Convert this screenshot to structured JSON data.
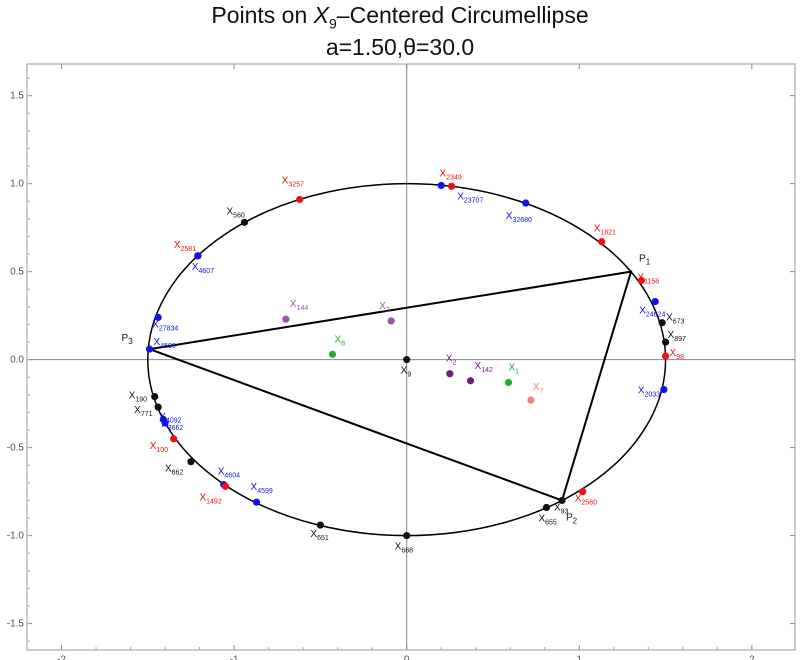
{
  "title": {
    "line1_pre": "Points on ",
    "line1_var": "X",
    "line1_sub": "9",
    "line1_post": "–Centered Circumellipse",
    "line2": "a=1.50,θ=30.0"
  },
  "chart_data": {
    "type": "scatter",
    "title": "Points on X9–Centered Circumellipse a=1.50,θ=30.0",
    "xlabel": "",
    "ylabel": "",
    "xlim": [
      -2.2,
      2.25
    ],
    "ylim": [
      -1.65,
      1.68
    ],
    "grid": false,
    "x_ticks": [
      -2,
      -1,
      0,
      1,
      2
    ],
    "x_tick_labels": [
      "-2",
      "-1",
      "0",
      "1",
      "2"
    ],
    "y_ticks": [
      -1.5,
      -1.0,
      -0.5,
      0.0,
      0.5,
      1.0,
      1.5
    ],
    "y_tick_labels": [
      "-1.5",
      "-1.0",
      "-0.5",
      "0.0",
      "0.5",
      "1.0",
      "1.5"
    ],
    "ellipse": {
      "center": [
        0,
        0
      ],
      "semi_x": 1.5,
      "semi_y": 1.0
    },
    "triangle": [
      {
        "name": "P",
        "sub": "1",
        "x": 1.3,
        "y": 0.5
      },
      {
        "name": "P",
        "sub": "2",
        "x": 0.9,
        "y": -0.8
      },
      {
        "name": "P",
        "sub": "3",
        "x": -1.49,
        "y": 0.06
      }
    ],
    "points": [
      {
        "base": "X",
        "sub": "2349",
        "x": 0.26,
        "y": 0.985,
        "color": "#ee1111"
      },
      {
        "base": "X",
        "sub": "23707",
        "x": 0.2,
        "y": 0.99,
        "color": "#1111ee"
      },
      {
        "base": "X",
        "sub": "3257",
        "x": -0.62,
        "y": 0.91,
        "color": "#ee1111"
      },
      {
        "base": "X",
        "sub": "560",
        "x": -0.94,
        "y": 0.78,
        "color": "#111111"
      },
      {
        "base": "X",
        "sub": "32680",
        "x": 0.69,
        "y": 0.89,
        "color": "#1111ee"
      },
      {
        "base": "X",
        "sub": "1821",
        "x": 1.13,
        "y": 0.67,
        "color": "#ee1111"
      },
      {
        "base": "X",
        "sub": "2581",
        "x": -1.21,
        "y": 0.59,
        "color": "#ee1111"
      },
      {
        "base": "X",
        "sub": "4607",
        "x": -1.21,
        "y": 0.59,
        "color": "#1111ee"
      },
      {
        "base": "X",
        "sub": "1156",
        "x": 1.36,
        "y": 0.45,
        "color": "#ee1111"
      },
      {
        "base": "X",
        "sub": "24624",
        "x": 1.44,
        "y": 0.33,
        "color": "#1111ee"
      },
      {
        "base": "X",
        "sub": "673",
        "x": 1.48,
        "y": 0.21,
        "color": "#111111"
      },
      {
        "base": "X",
        "sub": "897",
        "x": 1.5,
        "y": 0.1,
        "color": "#111111"
      },
      {
        "base": "X",
        "sub": "98",
        "x": 1.5,
        "y": 0.02,
        "color": "#ee1111"
      },
      {
        "base": "X",
        "sub": "2033",
        "x": 1.49,
        "y": -0.17,
        "color": "#1111ee"
      },
      {
        "base": "X",
        "sub": "27834",
        "x": -1.44,
        "y": 0.24,
        "color": "#1111ee"
      },
      {
        "base": "X",
        "sub": "4598",
        "x": -1.49,
        "y": 0.06,
        "color": "#1111ee"
      },
      {
        "base": "X",
        "sub": "190",
        "x": -1.46,
        "y": -0.21,
        "color": "#111111"
      },
      {
        "base": "X",
        "sub": "771",
        "x": -1.44,
        "y": -0.27,
        "color": "#111111"
      },
      {
        "base": "X",
        "sub": "4092",
        "x": -1.41,
        "y": -0.34,
        "color": "#1111ee"
      },
      {
        "base": "X",
        "sub": "3662",
        "x": -1.4,
        "y": -0.36,
        "color": "#1111ee"
      },
      {
        "base": "X",
        "sub": "100",
        "x": -1.35,
        "y": -0.45,
        "color": "#ee1111"
      },
      {
        "base": "X",
        "sub": "662",
        "x": -1.25,
        "y": -0.58,
        "color": "#111111"
      },
      {
        "base": "X",
        "sub": "4604",
        "x": -1.06,
        "y": -0.71,
        "color": "#1111ee"
      },
      {
        "base": "X",
        "sub": "1492",
        "x": -1.05,
        "y": -0.72,
        "color": "#ee1111"
      },
      {
        "base": "X",
        "sub": "4599",
        "x": -0.87,
        "y": -0.81,
        "color": "#1111ee"
      },
      {
        "base": "X",
        "sub": "651",
        "x": -0.5,
        "y": -0.94,
        "color": "#111111"
      },
      {
        "base": "X",
        "sub": "668",
        "x": 0.0,
        "y": -1.0,
        "color": "#111111"
      },
      {
        "base": "X",
        "sub": "655",
        "x": 0.81,
        "y": -0.84,
        "color": "#111111"
      },
      {
        "base": "X",
        "sub": "93",
        "x": 0.9,
        "y": -0.8,
        "color": "#111111"
      },
      {
        "base": "X",
        "sub": "2580",
        "x": 1.02,
        "y": -0.75,
        "color": "#ee1111"
      },
      {
        "base": "X",
        "sub": "144",
        "x": -0.7,
        "y": 0.23,
        "color": "#9955aa"
      },
      {
        "base": "X",
        "sub": "3",
        "x": -0.09,
        "y": 0.22,
        "color": "#9955aa"
      },
      {
        "base": "X",
        "sub": "8",
        "x": -0.43,
        "y": 0.03,
        "color": "#22aa33"
      },
      {
        "base": "X",
        "sub": "9",
        "x": 0.0,
        "y": 0.0,
        "color": "#111111"
      },
      {
        "base": "X",
        "sub": "2",
        "x": 0.25,
        "y": -0.08,
        "color": "#6a2278"
      },
      {
        "base": "X",
        "sub": "142",
        "x": 0.37,
        "y": -0.12,
        "color": "#6a2278"
      },
      {
        "base": "X",
        "sub": "1",
        "x": 0.59,
        "y": -0.13,
        "color": "#22aa33"
      },
      {
        "base": "X",
        "sub": "7",
        "x": 0.72,
        "y": -0.23,
        "color": "#f08080"
      }
    ]
  }
}
